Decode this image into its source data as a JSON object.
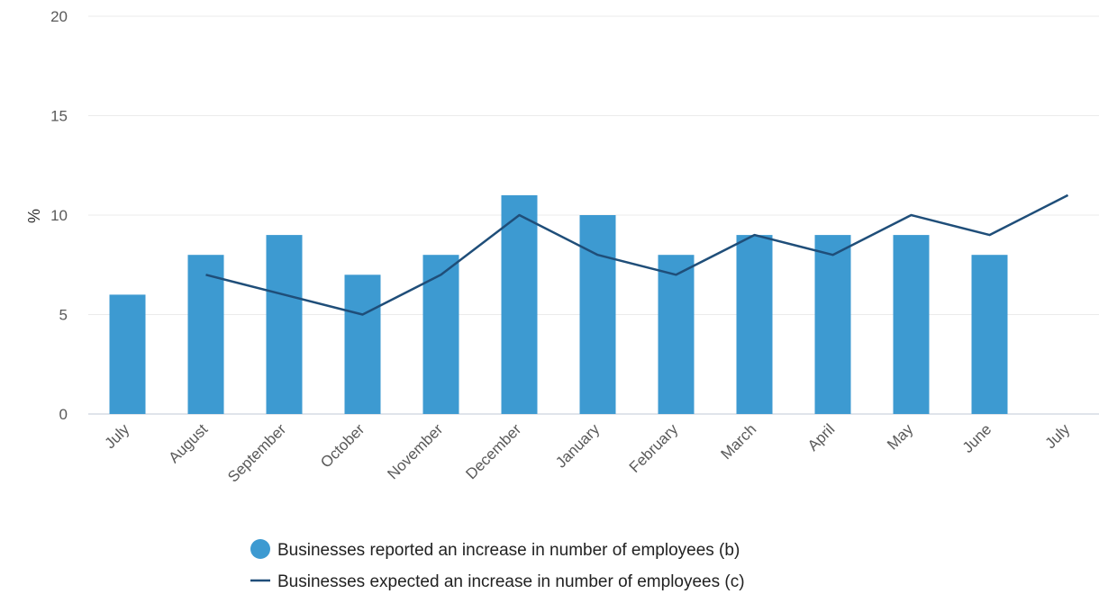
{
  "chart_data": {
    "type": "bar",
    "title": "",
    "xlabel": "",
    "ylabel": "%",
    "ylim": [
      0,
      20
    ],
    "yticks": [
      0,
      5,
      10,
      15,
      20
    ],
    "grid": true,
    "legend_position": "bottom",
    "categories": [
      "July",
      "August",
      "September",
      "October",
      "November",
      "December",
      "January",
      "February",
      "March",
      "April",
      "May",
      "June",
      "July"
    ],
    "series": [
      {
        "name": "Businesses reported an increase in number of employees (b)",
        "type": "bar",
        "color": "#3d9ad1",
        "values": [
          6,
          8,
          9,
          7,
          8,
          11,
          10,
          8,
          9,
          9,
          9,
          8,
          null
        ]
      },
      {
        "name": "Businesses expected an increase in number of employees (c)",
        "type": "line",
        "color": "#1f4e79",
        "values": [
          null,
          7,
          6,
          5,
          7,
          10,
          8,
          7,
          9,
          8,
          10,
          9,
          11
        ]
      }
    ]
  }
}
